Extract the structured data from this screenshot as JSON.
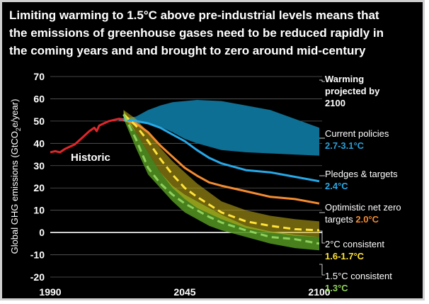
{
  "title_lines": [
    "Limiting warming to 1.5°C above pre-industrial levels means that",
    "the emissions of greenhouse gases need to be reduced rapidly in",
    "the coming years and and brought to zero around mid-century"
  ],
  "colors": {
    "background": "#000000",
    "historic": "#e0262a",
    "current_policies": "#0e6f94",
    "current_policies_text": "#2aa0d8",
    "pledges": "#26a9e8",
    "optimistic": "#f38b30",
    "band_2c": "#c9b21a",
    "line_2c": "#ffe33a",
    "band_15c": "#4f8e1f",
    "line_15c": "#8fd05c",
    "zero_line": "#ffffff"
  },
  "chart_data": {
    "type": "line",
    "title": "Limiting warming to 1.5°C above pre-industrial levels means that the emissions of greenhouse gases need to be reduced rapidly in the coming years and and brought to zero around mid-century",
    "ylabel": "Global GHG emissions (GtCO₂e/year)",
    "ylabel_parts": [
      "Global GHG emissions (GtCO",
      "2",
      "e/year)"
    ],
    "xlabel": "",
    "x_ticks": [
      "1990",
      "2045",
      "2100"
    ],
    "y_ticks": [
      70,
      60,
      50,
      40,
      30,
      20,
      10,
      0,
      -10,
      -20
    ],
    "xlim": [
      1990,
      2100
    ],
    "ylim": [
      -20,
      70
    ],
    "grid": "horizontal",
    "annotation": "Historic",
    "legend_heading": [
      "Warming",
      "projected by",
      "2100"
    ],
    "legend": [
      {
        "name": "Current policies",
        "value": "2.7-3.1°C"
      },
      {
        "name": "Pledges & targets",
        "value": "2.4°C"
      },
      {
        "name_lines": [
          "Optimistic net zero",
          "targets "
        ],
        "value": "2.0°C"
      },
      {
        "name": "2°C consistent",
        "value": "1.6-1.7°C"
      },
      {
        "name": "1.5°C consistent",
        "value": "1.3°C"
      }
    ],
    "historic": {
      "x": [
        1990,
        1992,
        1994,
        1996,
        1998,
        2000,
        2002,
        2004,
        2006,
        2008,
        2009,
        2010,
        2012,
        2014,
        2016,
        2018,
        2020
      ],
      "y": [
        36,
        36.5,
        36,
        37.5,
        38.5,
        39.5,
        41.5,
        43.5,
        45.5,
        47,
        45.5,
        48,
        49,
        50,
        50.5,
        51,
        50.5
      ]
    },
    "series": [
      {
        "name": "Current policies",
        "kind": "band",
        "x": [
          2018,
          2025,
          2030,
          2035,
          2040,
          2045,
          2050,
          2060,
          2070,
          2080,
          2090,
          2100
        ],
        "upper": [
          51,
          52,
          55,
          57,
          58.5,
          59,
          59.5,
          59,
          57,
          55,
          51,
          47
        ],
        "lower": [
          50,
          50,
          49,
          47.5,
          45,
          42,
          40,
          37,
          36,
          35.5,
          35,
          34.5
        ]
      },
      {
        "name": "Pledges & targets",
        "kind": "line",
        "x": [
          2018,
          2025,
          2030,
          2035,
          2040,
          2045,
          2050,
          2055,
          2060,
          2070,
          2080,
          2090,
          2100
        ],
        "y": [
          51,
          50,
          49,
          47,
          44,
          41,
          37,
          33.5,
          31,
          28,
          27,
          25,
          23
        ]
      },
      {
        "name": "Optimistic net zero targets",
        "kind": "line",
        "x": [
          2018,
          2025,
          2030,
          2035,
          2040,
          2045,
          2050,
          2055,
          2060,
          2070,
          2080,
          2090,
          2100
        ],
        "y": [
          51,
          49,
          45,
          39,
          34,
          29,
          25.5,
          22.5,
          21,
          18.5,
          16,
          15,
          13
        ]
      },
      {
        "name": "2°C consistent",
        "kind": "band",
        "x": [
          2020,
          2025,
          2030,
          2035,
          2040,
          2045,
          2050,
          2060,
          2070,
          2080,
          2090,
          2100
        ],
        "upper": [
          55,
          51,
          45,
          38,
          32,
          27,
          22,
          14,
          10,
          7.5,
          6,
          5
        ],
        "lower": [
          52,
          45,
          36,
          27,
          20,
          15,
          11,
          6,
          2,
          0,
          -1.5,
          -2
        ],
        "median": [
          53,
          48,
          41,
          33,
          26,
          20,
          16,
          9,
          5,
          3,
          1.5,
          1
        ]
      },
      {
        "name": "1.5°C consistent",
        "kind": "band",
        "x": [
          2020,
          2025,
          2030,
          2035,
          2040,
          2045,
          2050,
          2055,
          2060,
          2070,
          2080,
          2090,
          2100
        ],
        "upper": [
          55,
          45,
          36,
          27,
          21,
          17,
          14,
          11,
          8,
          3,
          0.5,
          -1,
          -2
        ],
        "lower": [
          51,
          38,
          26,
          20,
          14,
          9,
          6,
          3,
          1,
          -2,
          -5,
          -7,
          -8
        ],
        "median": [
          53,
          42,
          29,
          22,
          17,
          13,
          10,
          7,
          4.5,
          1,
          -2,
          -3,
          -5
        ]
      }
    ]
  }
}
